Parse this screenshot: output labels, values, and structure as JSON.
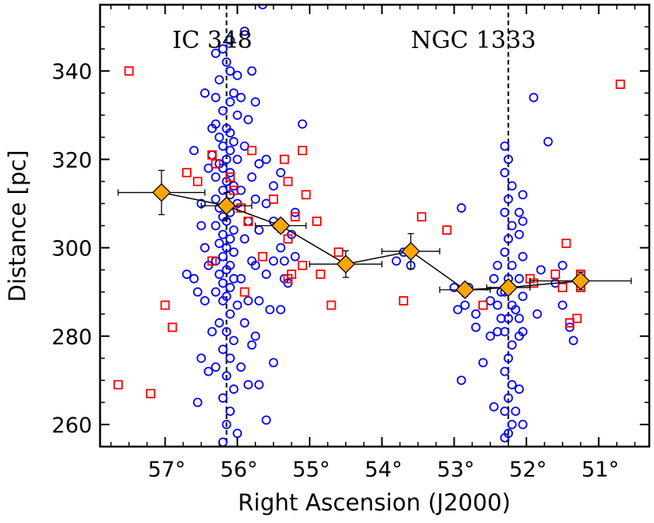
{
  "chart_data": {
    "type": "scatter",
    "xlabel": "Right Ascension (J2000)",
    "ylabel": "Distance [pc]",
    "xlim": [
      57.9,
      50.3
    ],
    "ylim": [
      255,
      355
    ],
    "x_reversed": true,
    "grid": false,
    "x_ticks": [
      {
        "value": 57,
        "label": "57°"
      },
      {
        "value": 56,
        "label": "56°"
      },
      {
        "value": 55,
        "label": "55°"
      },
      {
        "value": 54,
        "label": "54°"
      },
      {
        "value": 53,
        "label": "53°"
      },
      {
        "value": 52,
        "label": "52°"
      },
      {
        "value": 51,
        "label": "51°"
      }
    ],
    "y_ticks": [
      {
        "value": 260,
        "label": "260"
      },
      {
        "value": 280,
        "label": "280"
      },
      {
        "value": 300,
        "label": "300"
      },
      {
        "value": 320,
        "label": "320"
      },
      {
        "value": 340,
        "label": "340"
      }
    ],
    "vlines": [
      56.15,
      52.25
    ],
    "annotations": [
      {
        "text": "IC 348",
        "x": 56.9,
        "y": 347
      },
      {
        "text": "NGC 1333",
        "x": 53.6,
        "y": 347
      }
    ],
    "colors": {
      "circles": "#0000ff",
      "squares": "#ff0000",
      "diamonds": "#ffa500"
    },
    "series": [
      {
        "marker": "circle",
        "points": [
          [
            56.2,
            345
          ],
          [
            56.15,
            342
          ],
          [
            56.1,
            340
          ],
          [
            56.25,
            338
          ],
          [
            56.05,
            335
          ],
          [
            56.3,
            334
          ],
          [
            56.1,
            333
          ],
          [
            56.2,
            331
          ],
          [
            56.0,
            330
          ],
          [
            56.3,
            328
          ],
          [
            56.15,
            327
          ],
          [
            56.1,
            326
          ],
          [
            56.25,
            325
          ],
          [
            56.05,
            324
          ],
          [
            56.2,
            323
          ],
          [
            56.1,
            322
          ],
          [
            56.35,
            321
          ],
          [
            56.15,
            320
          ],
          [
            56.0,
            320
          ],
          [
            56.25,
            319
          ],
          [
            56.2,
            318
          ],
          [
            56.1,
            317
          ],
          [
            56.3,
            316
          ],
          [
            56.15,
            315
          ],
          [
            56.05,
            314
          ],
          [
            56.2,
            313
          ],
          [
            56.1,
            312
          ],
          [
            56.3,
            311
          ],
          [
            56.15,
            310
          ],
          [
            56.0,
            310
          ],
          [
            56.25,
            309
          ],
          [
            56.1,
            308
          ],
          [
            56.2,
            307
          ],
          [
            56.15,
            306
          ],
          [
            56.3,
            305
          ],
          [
            56.05,
            304
          ],
          [
            56.2,
            303
          ],
          [
            56.1,
            302
          ],
          [
            56.25,
            301
          ],
          [
            56.15,
            300
          ],
          [
            56.05,
            299
          ],
          [
            56.2,
            298
          ],
          [
            56.3,
            297
          ],
          [
            56.1,
            296
          ],
          [
            56.15,
            295
          ],
          [
            56.25,
            294
          ],
          [
            56.05,
            293
          ],
          [
            56.2,
            292
          ],
          [
            56.1,
            291
          ],
          [
            56.3,
            290
          ],
          [
            56.15,
            289
          ],
          [
            56.2,
            288
          ],
          [
            56.0,
            287
          ],
          [
            56.1,
            285
          ],
          [
            56.25,
            283
          ],
          [
            56.15,
            281
          ],
          [
            56.05,
            279
          ],
          [
            56.2,
            277
          ],
          [
            56.1,
            275
          ],
          [
            56.3,
            273
          ],
          [
            56.15,
            271
          ],
          [
            56.05,
            268
          ],
          [
            56.2,
            266
          ],
          [
            56.1,
            263
          ],
          [
            56.15,
            260
          ],
          [
            56.0,
            258
          ],
          [
            56.2,
            256
          ],
          [
            56.1,
            347
          ],
          [
            56.3,
            344
          ],
          [
            56.0,
            339
          ],
          [
            56.7,
            294
          ],
          [
            56.6,
            293
          ],
          [
            56.55,
            290
          ],
          [
            56.4,
            296
          ],
          [
            56.5,
            310
          ],
          [
            56.6,
            322
          ],
          [
            56.4,
            318
          ],
          [
            56.5,
            305
          ],
          [
            56.45,
            288
          ],
          [
            56.5,
            275
          ],
          [
            56.55,
            265
          ],
          [
            56.4,
            272
          ],
          [
            56.35,
            281
          ],
          [
            56.45,
            300
          ],
          [
            56.35,
            327
          ],
          [
            56.45,
            335
          ],
          [
            55.9,
            349
          ],
          [
            55.8,
            340
          ],
          [
            55.95,
            334
          ],
          [
            55.85,
            329
          ],
          [
            55.9,
            323
          ],
          [
            55.8,
            316
          ],
          [
            55.95,
            313
          ],
          [
            55.85,
            306
          ],
          [
            55.9,
            302
          ],
          [
            55.8,
            297
          ],
          [
            55.95,
            293
          ],
          [
            55.85,
            288
          ],
          [
            55.9,
            283
          ],
          [
            55.8,
            278
          ],
          [
            55.95,
            273
          ],
          [
            55.85,
            269
          ],
          [
            55.75,
            333
          ],
          [
            55.7,
            319
          ],
          [
            55.75,
            311
          ],
          [
            55.7,
            304
          ],
          [
            55.75,
            296
          ],
          [
            55.7,
            288
          ],
          [
            55.75,
            280
          ],
          [
            55.7,
            269
          ],
          [
            55.65,
            355
          ],
          [
            55.6,
            320
          ],
          [
            55.5,
            314
          ],
          [
            55.6,
            310
          ],
          [
            55.5,
            306
          ],
          [
            55.45,
            305
          ],
          [
            55.4,
            300
          ],
          [
            55.35,
            297
          ],
          [
            55.5,
            297
          ],
          [
            55.6,
            294
          ],
          [
            55.5,
            274
          ],
          [
            55.55,
            286
          ],
          [
            55.6,
            261
          ],
          [
            55.4,
            286
          ],
          [
            55.4,
            317
          ],
          [
            55.1,
            328
          ],
          [
            55.2,
            308
          ],
          [
            55.25,
            303
          ],
          [
            55.2,
            298
          ],
          [
            55.3,
            292
          ],
          [
            55.35,
            293
          ],
          [
            53.7,
            299
          ],
          [
            53.6,
            296
          ],
          [
            53.8,
            297
          ],
          [
            53.0,
            291
          ],
          [
            52.95,
            286
          ],
          [
            52.85,
            287
          ],
          [
            52.9,
            270
          ],
          [
            52.8,
            291
          ],
          [
            52.7,
            285
          ],
          [
            52.6,
            274
          ],
          [
            52.7,
            282
          ],
          [
            52.5,
            288
          ],
          [
            52.9,
            309
          ],
          [
            52.3,
            323
          ],
          [
            52.25,
            320
          ],
          [
            52.3,
            317
          ],
          [
            52.2,
            314
          ],
          [
            52.25,
            311
          ],
          [
            52.3,
            308
          ],
          [
            52.2,
            305
          ],
          [
            52.25,
            302
          ],
          [
            52.3,
            299
          ],
          [
            52.2,
            296
          ],
          [
            52.25,
            293
          ],
          [
            52.3,
            290
          ],
          [
            52.2,
            287
          ],
          [
            52.25,
            284
          ],
          [
            52.3,
            281
          ],
          [
            52.2,
            278
          ],
          [
            52.25,
            275
          ],
          [
            52.3,
            272
          ],
          [
            52.2,
            269
          ],
          [
            52.25,
            266
          ],
          [
            52.3,
            263
          ],
          [
            52.2,
            260
          ],
          [
            52.25,
            258
          ],
          [
            52.3,
            257
          ],
          [
            52.4,
            296
          ],
          [
            52.45,
            293
          ],
          [
            52.35,
            290
          ],
          [
            52.4,
            287
          ],
          [
            52.35,
            284
          ],
          [
            52.4,
            281
          ],
          [
            52.5,
            280
          ],
          [
            52.45,
            264
          ],
          [
            52.1,
            308
          ],
          [
            52.05,
            306
          ],
          [
            52.1,
            303
          ],
          [
            52.05,
            298
          ],
          [
            52.1,
            293
          ],
          [
            52.05,
            289
          ],
          [
            52.15,
            286
          ],
          [
            52.1,
            284
          ],
          [
            52.05,
            281
          ],
          [
            52.1,
            280
          ],
          [
            52.05,
            312
          ],
          [
            52.1,
            268
          ],
          [
            52.15,
            263
          ],
          [
            52.05,
            260
          ],
          [
            51.9,
            334
          ],
          [
            51.7,
            324
          ],
          [
            51.8,
            295
          ],
          [
            51.85,
            285
          ],
          [
            51.5,
            296
          ],
          [
            51.6,
            292
          ],
          [
            51.5,
            287
          ],
          [
            51.4,
            282
          ],
          [
            51.35,
            279
          ]
        ]
      },
      {
        "marker": "square",
        "points": [
          [
            57.5,
            340
          ],
          [
            57.65,
            269
          ],
          [
            57.2,
            267
          ],
          [
            57.0,
            287
          ],
          [
            56.9,
            282
          ],
          [
            56.7,
            317
          ],
          [
            56.55,
            315
          ],
          [
            56.35,
            321
          ],
          [
            56.3,
            319
          ],
          [
            56.35,
            297
          ],
          [
            56.1,
            316
          ],
          [
            56.05,
            313
          ],
          [
            55.95,
            309
          ],
          [
            55.85,
            306
          ],
          [
            55.9,
            290
          ],
          [
            55.85,
            306
          ],
          [
            55.8,
            322
          ],
          [
            55.65,
            298
          ],
          [
            55.5,
            311
          ],
          [
            55.3,
            315
          ],
          [
            55.35,
            320
          ],
          [
            55.2,
            307
          ],
          [
            55.3,
            302
          ],
          [
            55.25,
            294
          ],
          [
            55.1,
            322
          ],
          [
            55.05,
            312
          ],
          [
            55.1,
            296
          ],
          [
            55.3,
            293
          ],
          [
            54.9,
            306
          ],
          [
            54.85,
            294
          ],
          [
            54.7,
            287
          ],
          [
            54.6,
            299
          ],
          [
            53.7,
            288
          ],
          [
            53.45,
            307
          ],
          [
            53.1,
            304
          ],
          [
            52.6,
            287
          ],
          [
            51.95,
            293
          ],
          [
            51.9,
            292
          ],
          [
            51.6,
            294
          ],
          [
            51.5,
            291
          ],
          [
            51.45,
            301
          ],
          [
            51.4,
            283
          ],
          [
            51.3,
            284
          ],
          [
            51.25,
            294
          ],
          [
            51.25,
            291
          ],
          [
            50.7,
            337
          ]
        ]
      },
      {
        "marker": "diamond",
        "points": [
          {
            "x": 57.05,
            "y": 312.5,
            "xerr": 0.6,
            "yerr": 5
          },
          {
            "x": 56.15,
            "y": 309.5,
            "xerr": 0.35,
            "yerr": 3
          },
          {
            "x": 55.4,
            "y": 305,
            "xerr": 0.35,
            "yerr": 1.5
          },
          {
            "x": 54.5,
            "y": 296.3,
            "xerr": 0.5,
            "yerr": 3
          },
          {
            "x": 53.6,
            "y": 299.2,
            "xerr": 0.4,
            "yerr": 4
          },
          {
            "x": 52.85,
            "y": 290.5,
            "xerr": 0.35,
            "yerr": 1.5
          },
          {
            "x": 52.25,
            "y": 291,
            "xerr": 0.3,
            "yerr": 1.5
          },
          {
            "x": 51.25,
            "y": 292.5,
            "xerr": 0.7,
            "yerr": 2
          }
        ]
      }
    ]
  }
}
